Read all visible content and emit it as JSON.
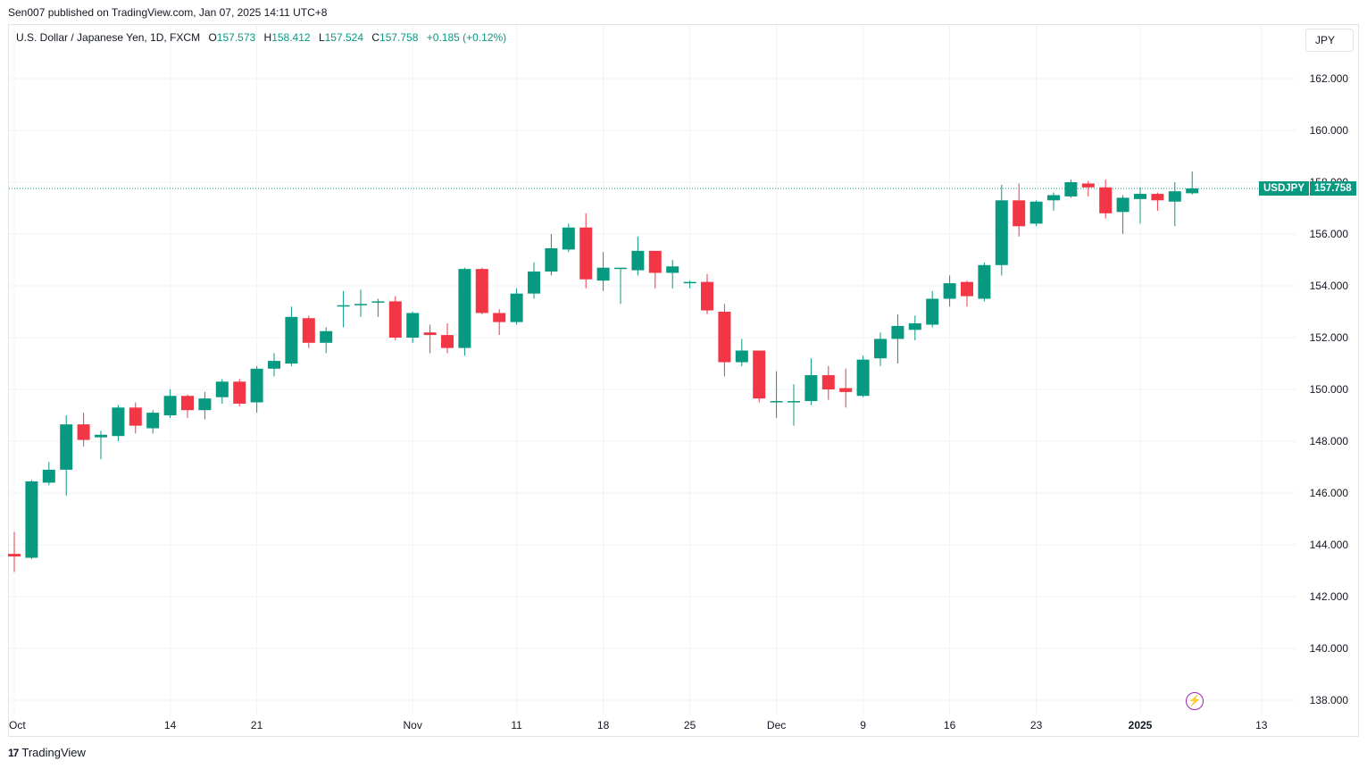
{
  "caption": "Sen007 published on TradingView.com, Jan 07, 2025 14:11 UTC+8",
  "legend": {
    "symbol": "U.S. Dollar / Japanese Yen, 1D, FXCM",
    "open_label": "O",
    "open": "157.573",
    "high_label": "H",
    "high": "158.412",
    "low_label": "L",
    "low": "157.524",
    "close_label": "C",
    "close": "157.758",
    "change": "+0.185 (+0.12%)"
  },
  "currency_button": "JPY",
  "price_tag": {
    "symbol": "USDJPY",
    "price": "157.758"
  },
  "footer_brand": "TradingView",
  "colors": {
    "up": "#089981",
    "down": "#f23645",
    "grid": "#f0f3fa",
    "axis_text": "#131722"
  },
  "chart_data": {
    "type": "candlestick",
    "y_axis": {
      "min": 137.2,
      "max": 163.0,
      "ticks": [
        "162.000",
        "160.000",
        "158.000",
        "156.000",
        "154.000",
        "152.000",
        "150.000",
        "148.000",
        "146.000",
        "144.000",
        "142.000",
        "140.000",
        "138.000"
      ]
    },
    "x_ticks": [
      {
        "label": "Oct",
        "index": 0,
        "bold": false
      },
      {
        "label": "14",
        "index": 9,
        "bold": false
      },
      {
        "label": "21",
        "index": 14,
        "bold": false
      },
      {
        "label": "Nov",
        "index": 23,
        "bold": false
      },
      {
        "label": "11",
        "index": 29,
        "bold": false
      },
      {
        "label": "18",
        "index": 34,
        "bold": false
      },
      {
        "label": "25",
        "index": 39,
        "bold": false
      },
      {
        "label": "Dec",
        "index": 44,
        "bold": false
      },
      {
        "label": "9",
        "index": 49,
        "bold": false
      },
      {
        "label": "16",
        "index": 54,
        "bold": false
      },
      {
        "label": "23",
        "index": 59,
        "bold": false
      },
      {
        "label": "2025",
        "index": 65,
        "bold": true
      },
      {
        "label": "13",
        "index": 72,
        "bold": false
      }
    ],
    "last_price": 157.758,
    "candles": [
      {
        "o": 143.65,
        "h": 144.5,
        "l": 142.95,
        "c": 143.55
      },
      {
        "o": 143.5,
        "h": 146.5,
        "l": 143.45,
        "c": 146.45
      },
      {
        "o": 146.4,
        "h": 147.2,
        "l": 146.3,
        "c": 146.9
      },
      {
        "o": 146.9,
        "h": 149.0,
        "l": 145.9,
        "c": 148.65
      },
      {
        "o": 148.65,
        "h": 149.1,
        "l": 147.8,
        "c": 148.05
      },
      {
        "o": 148.15,
        "h": 148.4,
        "l": 147.3,
        "c": 148.25
      },
      {
        "o": 148.2,
        "h": 149.4,
        "l": 148.0,
        "c": 149.3
      },
      {
        "o": 149.3,
        "h": 149.5,
        "l": 148.3,
        "c": 148.6
      },
      {
        "o": 148.5,
        "h": 149.2,
        "l": 148.3,
        "c": 149.1
      },
      {
        "o": 149.0,
        "h": 150.0,
        "l": 148.9,
        "c": 149.75
      },
      {
        "o": 149.75,
        "h": 149.8,
        "l": 148.9,
        "c": 149.2
      },
      {
        "o": 149.2,
        "h": 149.9,
        "l": 148.85,
        "c": 149.65
      },
      {
        "o": 149.7,
        "h": 150.4,
        "l": 149.45,
        "c": 150.3
      },
      {
        "o": 150.3,
        "h": 150.4,
        "l": 149.35,
        "c": 149.45
      },
      {
        "o": 149.5,
        "h": 150.9,
        "l": 149.1,
        "c": 150.8
      },
      {
        "o": 150.8,
        "h": 151.4,
        "l": 150.5,
        "c": 151.1
      },
      {
        "o": 151.0,
        "h": 153.2,
        "l": 150.9,
        "c": 152.8
      },
      {
        "o": 152.75,
        "h": 152.85,
        "l": 151.6,
        "c": 151.8
      },
      {
        "o": 151.8,
        "h": 152.4,
        "l": 151.4,
        "c": 152.25
      },
      {
        "o": 153.2,
        "h": 153.8,
        "l": 152.4,
        "c": 153.25
      },
      {
        "o": 153.25,
        "h": 153.85,
        "l": 152.8,
        "c": 153.3
      },
      {
        "o": 153.35,
        "h": 153.5,
        "l": 152.8,
        "c": 153.4
      },
      {
        "o": 153.4,
        "h": 153.6,
        "l": 151.9,
        "c": 152.0
      },
      {
        "o": 152.0,
        "h": 153.0,
        "l": 151.8,
        "c": 152.95
      },
      {
        "o": 152.2,
        "h": 152.5,
        "l": 151.4,
        "c": 152.1
      },
      {
        "o": 152.1,
        "h": 152.55,
        "l": 151.4,
        "c": 151.6
      },
      {
        "o": 151.6,
        "h": 154.7,
        "l": 151.3,
        "c": 154.65
      },
      {
        "o": 154.65,
        "h": 154.7,
        "l": 152.9,
        "c": 152.95
      },
      {
        "o": 152.95,
        "h": 153.1,
        "l": 152.1,
        "c": 152.6
      },
      {
        "o": 152.6,
        "h": 153.9,
        "l": 152.5,
        "c": 153.7
      },
      {
        "o": 153.7,
        "h": 154.9,
        "l": 153.5,
        "c": 154.55
      },
      {
        "o": 154.55,
        "h": 156.0,
        "l": 154.4,
        "c": 155.45
      },
      {
        "o": 155.4,
        "h": 156.4,
        "l": 155.3,
        "c": 156.25
      },
      {
        "o": 156.25,
        "h": 156.8,
        "l": 153.9,
        "c": 154.25
      },
      {
        "o": 154.2,
        "h": 155.3,
        "l": 153.8,
        "c": 154.7
      },
      {
        "o": 154.65,
        "h": 154.7,
        "l": 153.3,
        "c": 154.7
      },
      {
        "o": 154.6,
        "h": 155.9,
        "l": 154.4,
        "c": 155.35
      },
      {
        "o": 155.35,
        "h": 155.35,
        "l": 153.9,
        "c": 154.5
      },
      {
        "o": 154.5,
        "h": 155.0,
        "l": 153.9,
        "c": 154.75
      },
      {
        "o": 154.1,
        "h": 154.2,
        "l": 153.9,
        "c": 154.15
      },
      {
        "o": 154.15,
        "h": 154.45,
        "l": 152.9,
        "c": 153.05
      },
      {
        "o": 153.0,
        "h": 153.3,
        "l": 150.5,
        "c": 151.05
      },
      {
        "o": 151.05,
        "h": 151.95,
        "l": 150.9,
        "c": 151.5
      },
      {
        "o": 151.5,
        "h": 151.5,
        "l": 149.5,
        "c": 149.65
      },
      {
        "o": 149.55,
        "h": 150.7,
        "l": 148.9,
        "c": 149.55
      },
      {
        "o": 149.5,
        "h": 150.2,
        "l": 148.6,
        "c": 149.55
      },
      {
        "o": 149.55,
        "h": 151.2,
        "l": 149.4,
        "c": 150.55
      },
      {
        "o": 150.55,
        "h": 150.9,
        "l": 149.6,
        "c": 150.0
      },
      {
        "o": 150.05,
        "h": 150.8,
        "l": 149.3,
        "c": 149.9
      },
      {
        "o": 149.75,
        "h": 151.3,
        "l": 149.7,
        "c": 151.15
      },
      {
        "o": 151.2,
        "h": 152.2,
        "l": 150.9,
        "c": 151.95
      },
      {
        "o": 151.95,
        "h": 152.9,
        "l": 151.0,
        "c": 152.45
      },
      {
        "o": 152.3,
        "h": 152.85,
        "l": 151.9,
        "c": 152.55
      },
      {
        "o": 152.5,
        "h": 153.8,
        "l": 152.4,
        "c": 153.5
      },
      {
        "o": 153.5,
        "h": 154.4,
        "l": 153.2,
        "c": 154.1
      },
      {
        "o": 154.15,
        "h": 154.2,
        "l": 153.2,
        "c": 153.6
      },
      {
        "o": 153.5,
        "h": 154.9,
        "l": 153.4,
        "c": 154.8
      },
      {
        "o": 154.8,
        "h": 157.9,
        "l": 154.4,
        "c": 157.3
      },
      {
        "o": 157.3,
        "h": 157.95,
        "l": 155.9,
        "c": 156.3
      },
      {
        "o": 156.4,
        "h": 157.3,
        "l": 156.3,
        "c": 157.25
      },
      {
        "o": 157.3,
        "h": 157.6,
        "l": 156.9,
        "c": 157.5
      },
      {
        "o": 157.45,
        "h": 158.1,
        "l": 157.4,
        "c": 158.0
      },
      {
        "o": 157.95,
        "h": 158.05,
        "l": 157.45,
        "c": 157.8
      },
      {
        "o": 157.8,
        "h": 158.1,
        "l": 156.6,
        "c": 156.8
      },
      {
        "o": 156.85,
        "h": 157.5,
        "l": 156.0,
        "c": 157.4
      },
      {
        "o": 157.35,
        "h": 157.8,
        "l": 156.4,
        "c": 157.55
      },
      {
        "o": 157.55,
        "h": 157.6,
        "l": 156.9,
        "c": 157.3
      },
      {
        "o": 157.25,
        "h": 158.0,
        "l": 156.3,
        "c": 157.65
      },
      {
        "o": 157.573,
        "h": 158.412,
        "l": 157.524,
        "c": 157.758
      }
    ]
  }
}
